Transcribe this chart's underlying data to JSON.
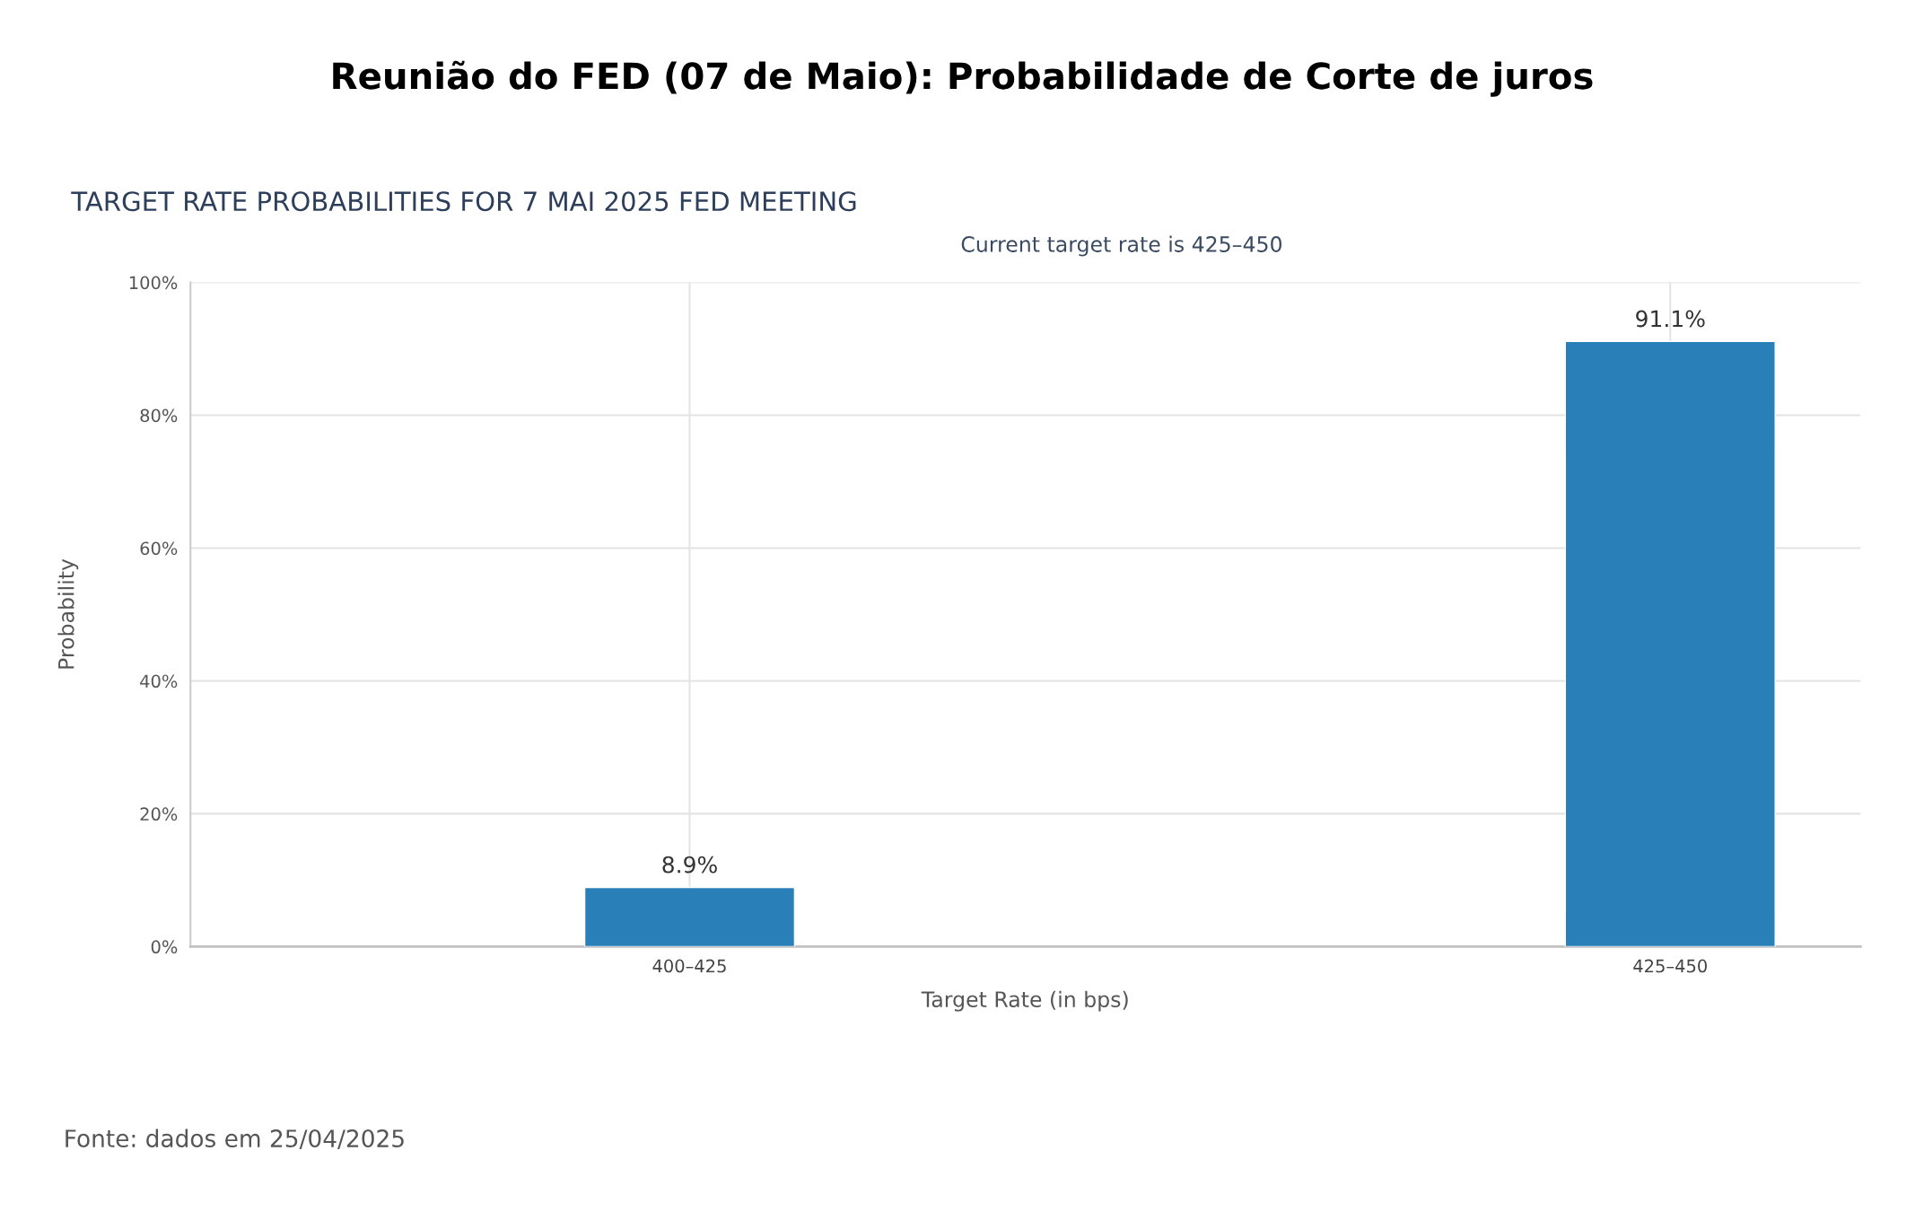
{
  "chart_data": {
    "type": "bar",
    "title": "Reunião do FED (07 de Maio): Probabilidade de Corte de juros",
    "subtitle": "TARGET RATE PROBABILITIES FOR 7 MAI 2025 FED MEETING",
    "annotations": [
      "Current target rate is 425–450",
      "Fonte: dados em 25/04/2025"
    ],
    "xlabel": "Target Rate (in bps)",
    "ylabel": "Probability",
    "categories": [
      "400–425",
      "425–450"
    ],
    "values": [
      8.9,
      91.1
    ],
    "color": "#2980b9",
    "value_labels": [
      "8.9%",
      "91.1%"
    ],
    "ylim": [
      0,
      100
    ],
    "yticks": [
      {
        "value": 0,
        "label": "0%"
      },
      {
        "value": 20,
        "label": "20%"
      },
      {
        "value": 40,
        "label": "40%"
      },
      {
        "value": 60,
        "label": "60%"
      },
      {
        "value": 80,
        "label": "80%"
      },
      {
        "value": 100,
        "label": "100%"
      }
    ],
    "grid": true
  }
}
